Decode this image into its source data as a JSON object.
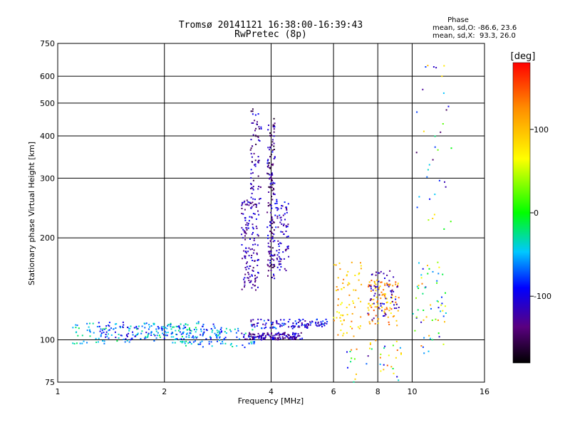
{
  "chart_data": {
    "type": "scatter",
    "title": "Tromsø 20141121 16:38:00-16:39:43",
    "subtitle": "RwPretec (8p)",
    "xlabel": "Frequency [MHz]",
    "ylabel": "Stationary phase Virtual Height [km]",
    "x_scale": "log",
    "y_scale": "log",
    "xlim": [
      1,
      16
    ],
    "ylim": [
      75,
      750
    ],
    "x_ticks": [
      1,
      2,
      4,
      6,
      8,
      10,
      16
    ],
    "x_tick_labels": [
      "1",
      "2",
      "4",
      "6",
      "8",
      "10",
      "16"
    ],
    "y_ticks": [
      75,
      100,
      200,
      300,
      400,
      500,
      600,
      750
    ],
    "y_tick_labels": [
      "75",
      "100",
      "200",
      "300",
      "400",
      "500",
      "600",
      "750"
    ],
    "grid": true,
    "stats": {
      "heading": "Phase",
      "line_o": "mean, sd,O: -86.6, 23.6",
      "line_x": "mean, sd,X:  93.3, 26.0"
    },
    "colorbar": {
      "label": "[deg]",
      "range": [
        -180,
        180
      ],
      "ticks": [
        100,
        0,
        -100
      ],
      "tick_labels": [
        "100",
        "0",
        "-100"
      ]
    },
    "clusters": [
      {
        "f": [
          1.1,
          2.5
        ],
        "h": [
          97,
          112
        ],
        "phase": [
          -70,
          -10
        ],
        "n": 140
      },
      {
        "f": [
          1.3,
          2.9
        ],
        "h": [
          100,
          113
        ],
        "phase": [
          -110,
          -60
        ],
        "n": 120
      },
      {
        "f": [
          2.2,
          3.6
        ],
        "h": [
          95,
          108
        ],
        "phase": [
          -90,
          -20
        ],
        "n": 90
      },
      {
        "f": [
          3.3,
          4.9
        ],
        "h": [
          100,
          105
        ],
        "phase": [
          -150,
          -90
        ],
        "n": 150
      },
      {
        "f": [
          3.5,
          5.8
        ],
        "h": [
          108,
          115
        ],
        "phase": [
          -140,
          -60
        ],
        "n": 120
      },
      {
        "f": [
          3.3,
          3.7
        ],
        "h": [
          140,
          260
        ],
        "phase": [
          -150,
          -90
        ],
        "n": 150
      },
      {
        "f": [
          3.5,
          3.75
        ],
        "h": [
          250,
          480
        ],
        "phase": [
          -160,
          -90
        ],
        "n": 70
      },
      {
        "f": [
          3.9,
          4.1
        ],
        "h": [
          150,
          450
        ],
        "phase": [
          -170,
          -90
        ],
        "n": 160
      },
      {
        "f": [
          4.1,
          4.5
        ],
        "h": [
          160,
          260
        ],
        "phase": [
          -140,
          -80
        ],
        "n": 80
      },
      {
        "f": [
          6.0,
          7.2
        ],
        "h": [
          100,
          170
        ],
        "phase": [
          60,
          140
        ],
        "n": 70
      },
      {
        "f": [
          7.5,
          9.2
        ],
        "h": [
          110,
          150
        ],
        "phase": [
          70,
          150
        ],
        "n": 100
      },
      {
        "f": [
          7.5,
          9.2
        ],
        "h": [
          110,
          160
        ],
        "phase": [
          -140,
          -90
        ],
        "n": 60
      },
      {
        "f": [
          10.0,
          12.5
        ],
        "h": [
          90,
          170
        ],
        "phase": [
          -120,
          140
        ],
        "n": 60
      },
      {
        "f": [
          10.0,
          13.0
        ],
        "h": [
          200,
          650
        ],
        "phase": [
          -150,
          160
        ],
        "n": 35
      },
      {
        "f": [
          6.5,
          9.5
        ],
        "h": [
          75,
          100
        ],
        "phase": [
          -140,
          150
        ],
        "n": 40
      }
    ]
  }
}
